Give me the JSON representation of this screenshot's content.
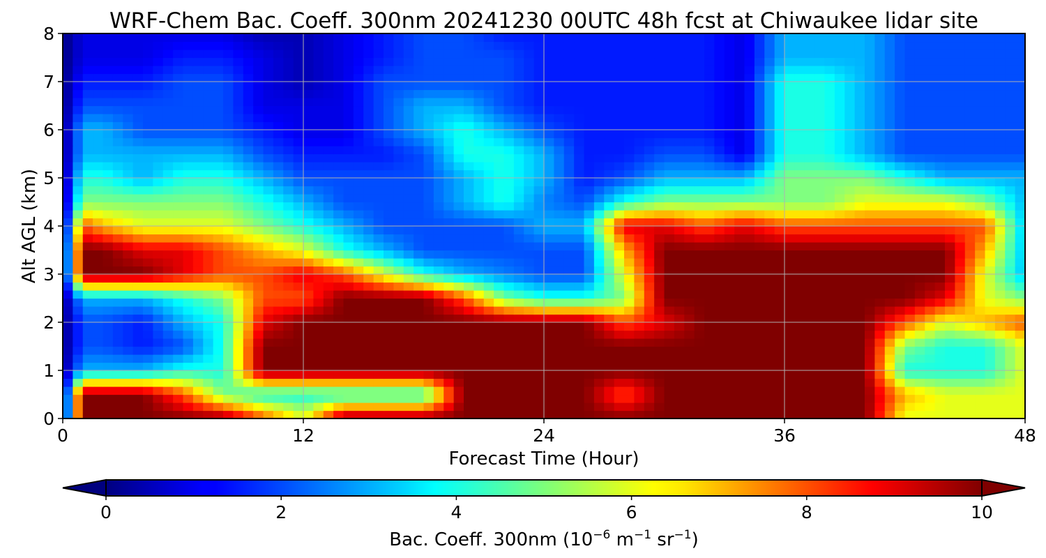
{
  "chart_data": {
    "type": "heatmap",
    "title": "WRF-Chem Bac. Coeff. 300nm  20241230 00UTC 48h fcst at Chiwaukee lidar site",
    "xlabel": "Forecast Time (Hour)",
    "ylabel": "Alt AGL (km)",
    "xlim": [
      0,
      48
    ],
    "ylim": [
      0,
      8
    ],
    "xticks": [
      "0",
      "12",
      "24",
      "36",
      "48"
    ],
    "yticks": [
      "0",
      "1",
      "2",
      "3",
      "4",
      "5",
      "6",
      "7",
      "8"
    ],
    "grid": true,
    "colormap": "jet",
    "colorbar": {
      "label_prefix": "Bac. Coeff. 300nm  (10",
      "label_exp1": "−6",
      "label_mid": " m",
      "label_exp2": "−1",
      "label_mid2": " sr",
      "label_exp3": "−1",
      "label_suffix": ")",
      "range": [
        0,
        10
      ],
      "ticks": [
        "0",
        "2",
        "4",
        "6",
        "8",
        "10"
      ],
      "extend": "both"
    },
    "x": [
      0,
      1,
      2,
      4,
      6,
      8,
      10,
      12,
      14,
      16,
      18,
      20,
      22,
      24,
      26,
      28,
      30,
      32,
      34,
      36,
      38,
      40,
      42,
      44,
      46,
      48
    ],
    "y": [
      0,
      0.5,
      1,
      1.5,
      2,
      2.5,
      3,
      3.5,
      4,
      4.5,
      5,
      5.5,
      6,
      6.5,
      7,
      7.5,
      8
    ],
    "z": [
      [
        0,
        10,
        10,
        10,
        10,
        10,
        8,
        6,
        10,
        10,
        10,
        10,
        10,
        10,
        10,
        10,
        10,
        10,
        10,
        10,
        10,
        10,
        6,
        6,
        6,
        6
      ],
      [
        0,
        10,
        10,
        10,
        8,
        5,
        4,
        4,
        4,
        4,
        4,
        10,
        10,
        10,
        10,
        8,
        10,
        10,
        10,
        10,
        10,
        10,
        7,
        6,
        6,
        6
      ],
      [
        0,
        3,
        3,
        3,
        4,
        4,
        10,
        10,
        10,
        10,
        10,
        10,
        10,
        10,
        10,
        10,
        10,
        10,
        10,
        10,
        10,
        10,
        4,
        4,
        4,
        6
      ],
      [
        0,
        2,
        2,
        1.5,
        2,
        4,
        10,
        10,
        10,
        10,
        10,
        10,
        10,
        10,
        10,
        10,
        10,
        10,
        10,
        10,
        10,
        10,
        5,
        4,
        4,
        6
      ],
      [
        0,
        2,
        2,
        1.5,
        3,
        4,
        9,
        10,
        10,
        10,
        10,
        10,
        10,
        10,
        10,
        8,
        9,
        10,
        10,
        10,
        10,
        10,
        8,
        6,
        7,
        8
      ],
      [
        0,
        3,
        3,
        3,
        4,
        5,
        8,
        8,
        10,
        10,
        10,
        8,
        5,
        4,
        4,
        5,
        10,
        10,
        10,
        10,
        10,
        10,
        10,
        9,
        6,
        5
      ],
      [
        0,
        10,
        10,
        10,
        9,
        8,
        8,
        9,
        8,
        6,
        4,
        3,
        2.5,
        2,
        2,
        6,
        10,
        10,
        10,
        10,
        10,
        10,
        10,
        10,
        6,
        3
      ],
      [
        0,
        10,
        10,
        9,
        9,
        8,
        7,
        6,
        4,
        3,
        2,
        2,
        2,
        2,
        2,
        7,
        10,
        10,
        10,
        10,
        10,
        10,
        10,
        10,
        7,
        3
      ],
      [
        0,
        8,
        7,
        6,
        6,
        6,
        5,
        4,
        3,
        2,
        2,
        2,
        2,
        3,
        3,
        9,
        9,
        8,
        9,
        8,
        8,
        8,
        8,
        8,
        8,
        3
      ],
      [
        0,
        5,
        5,
        5,
        5,
        5,
        4,
        3,
        2,
        2,
        2,
        3,
        4,
        2.5,
        2,
        4,
        5,
        5,
        5,
        5,
        5,
        6,
        6,
        6,
        5,
        3
      ],
      [
        0,
        4,
        4,
        3,
        4,
        4,
        3,
        2,
        2,
        2,
        2,
        3,
        4,
        3,
        1.5,
        2,
        3,
        3,
        3,
        5,
        5,
        5,
        4,
        3,
        3,
        3
      ],
      [
        0,
        3,
        3,
        3,
        3,
        3,
        2,
        1.5,
        1.5,
        1.5,
        2,
        4,
        4,
        3,
        1.5,
        1.5,
        2,
        2,
        1,
        4,
        4,
        3,
        2,
        2,
        2,
        2
      ],
      [
        0,
        3,
        3,
        2,
        2,
        2,
        1.5,
        1,
        1,
        2,
        3,
        4,
        3,
        2,
        1.5,
        1.5,
        1.5,
        1.5,
        1,
        4,
        4,
        3,
        2,
        2,
        2,
        2
      ],
      [
        0,
        2,
        2,
        2,
        2,
        2,
        1,
        1,
        1,
        2,
        3,
        3,
        2,
        1.5,
        1.5,
        1.5,
        1.5,
        1.5,
        1,
        4,
        4,
        3,
        2,
        2,
        2,
        2
      ],
      [
        0,
        1.5,
        1.5,
        1.5,
        2,
        2,
        1,
        0.5,
        1,
        2,
        2,
        2,
        2,
        1.5,
        1.5,
        1.5,
        1.5,
        1.5,
        1,
        4,
        4,
        3,
        2,
        2,
        2,
        2
      ],
      [
        0,
        1,
        1,
        1,
        1.5,
        1.5,
        1,
        0.5,
        1,
        1.5,
        2,
        2,
        2,
        1.5,
        1.5,
        1.5,
        1.5,
        1.5,
        1,
        3,
        3,
        3,
        2,
        2,
        2,
        2
      ],
      [
        0,
        1,
        1,
        1,
        1,
        1,
        0.5,
        0.5,
        1,
        1.5,
        2,
        2,
        1.5,
        1.5,
        1.5,
        1.5,
        1.5,
        1.5,
        1,
        3,
        3,
        3,
        2,
        2,
        2,
        2
      ]
    ]
  }
}
